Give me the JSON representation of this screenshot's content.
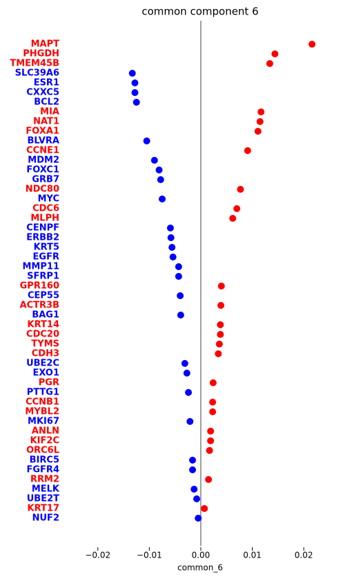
{
  "chart_data": {
    "type": "dot",
    "title": "common component 6",
    "x_label": "common_6",
    "categories": [
      "MAPT",
      "PHGDH",
      "TMEM45B",
      "SLC39A6",
      "ESR1",
      "CXXC5",
      "BCL2",
      "MIA",
      "NAT1",
      "FOXA1",
      "BLVRA",
      "CCNE1",
      "MDM2",
      "FOXC1",
      "GRB7",
      "NDC80",
      "MYC",
      "CDC6",
      "MLPH",
      "CENPF",
      "ERBB2",
      "KRT5",
      "EGFR",
      "MMP11",
      "SFRP1",
      "GPR160",
      "CEP55",
      "ACTR3B",
      "BAG1",
      "KRT14",
      "CDC20",
      "TYMS",
      "CDH3",
      "UBE2C",
      "EXO1",
      "PGR",
      "PTTG1",
      "CCNB1",
      "MYBL2",
      "MKI67",
      "ANLN",
      "KIF2C",
      "ORC6L",
      "BIRC5",
      "FGFR4",
      "RRM2",
      "MELK",
      "UBE2T",
      "KRT17",
      "NUF2"
    ],
    "values": [
      0.0216,
      0.0144,
      0.0134,
      -0.0133,
      -0.0128,
      -0.0128,
      -0.0125,
      0.0117,
      0.0115,
      0.0111,
      -0.0105,
      0.0091,
      -0.009,
      -0.0081,
      -0.0078,
      0.0077,
      -0.0075,
      0.007,
      0.0062,
      -0.0059,
      -0.0058,
      -0.0056,
      -0.0054,
      -0.0043,
      -0.0043,
      0.004,
      -0.004,
      0.0039,
      -0.0039,
      0.0038,
      0.0038,
      0.0036,
      0.0034,
      -0.0031,
      -0.0027,
      0.0024,
      -0.0024,
      0.0023,
      0.0023,
      -0.0021,
      0.0019,
      0.0019,
      0.0017,
      -0.0016,
      -0.0016,
      0.0015,
      -0.0013,
      -0.0008,
      0.0007,
      -0.0005
    ],
    "color_positive": "red",
    "color_negative": "blue",
    "zero_line_color": "gray",
    "xlim": [
      -0.026,
      0.024
    ],
    "xticks": [
      {
        "value": -0.02,
        "label": "−0.02"
      },
      {
        "value": -0.01,
        "label": "−0.01"
      },
      {
        "value": 0,
        "label": "0.00"
      },
      0.01,
      0.02
    ]
  }
}
